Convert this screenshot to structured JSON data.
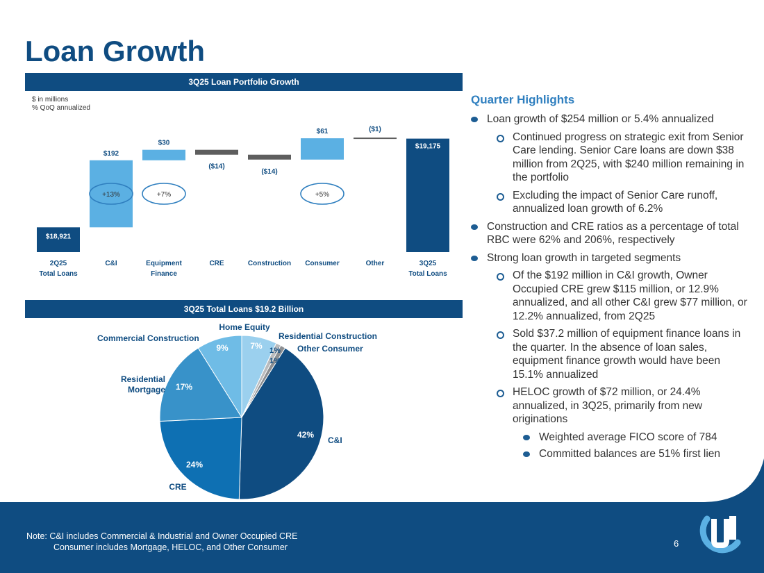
{
  "page": {
    "title": "Loan Growth",
    "page_number": "6"
  },
  "left": {
    "section1_header": "3Q25 Loan Portfolio Growth",
    "units_line1": "$ in millions",
    "units_line2": "% QoQ annualized",
    "section2_header": "3Q25 Total Loans $19.2 Billion"
  },
  "chart_data": [
    {
      "type": "bar",
      "subtype": "waterfall",
      "title": "3Q25 Loan Portfolio Growth",
      "units": "$ in millions",
      "categories": [
        [
          "2Q25",
          "Total Loans"
        ],
        [
          "C&I"
        ],
        [
          "Equipment",
          "Finance"
        ],
        [
          "CRE"
        ],
        [
          "Construction"
        ],
        [
          "Consumer"
        ],
        [
          "Other"
        ],
        [
          "3Q25",
          "Total Loans"
        ]
      ],
      "values": [
        18921,
        192,
        30,
        -14,
        -14,
        61,
        -1,
        19175
      ],
      "value_labels": [
        "$18,921",
        "$192",
        "$30",
        "($14)",
        "($14)",
        "$61",
        "($1)",
        "$19,175"
      ],
      "annualized_growth": [
        "",
        "+13%",
        "+7%",
        "",
        "",
        "+5%",
        "",
        ""
      ],
      "colors": {
        "total": "#0f4c81",
        "increase": "#5bb0e3",
        "decrease": "#5e5e5e",
        "label": "#0f4c81"
      }
    },
    {
      "type": "pie",
      "title": "3Q25 Total Loans $19.2 Billion",
      "slices": [
        {
          "label": "C&I",
          "value": 42,
          "pct_label": "42%",
          "color": "#0f4c81"
        },
        {
          "label": "CRE",
          "value": 24,
          "pct_label": "24%",
          "color": "#0e70b3"
        },
        {
          "label": "Residential Mortgage",
          "value": 17,
          "pct_label": "17%",
          "color": "#3892c9"
        },
        {
          "label": "Commercial Construction",
          "value": 9,
          "pct_label": "9%",
          "color": "#6fbce6"
        },
        {
          "label": "Home Equity",
          "value": 7,
          "pct_label": "7%",
          "color": "#9bd0ee"
        },
        {
          "label": "Residential Construction",
          "value": 1,
          "pct_label": "1%",
          "color": "#b9bbbd"
        },
        {
          "label": "Other Consumer",
          "value": 1,
          "pct_label": "1%",
          "color": "#8c8f92"
        }
      ]
    }
  ],
  "highlights": {
    "heading": "Quarter Highlights",
    "items": [
      {
        "level": 1,
        "text": "Loan growth of $254 million or 5.4% annualized"
      },
      {
        "level": 2,
        "text": "Continued progress on strategic exit from Senior Care lending. Senior Care loans are down $38 million from 2Q25, with $240 million remaining in the portfolio"
      },
      {
        "level": 2,
        "text": "Excluding the impact of Senior Care runoff, annualized loan growth of 6.2%"
      },
      {
        "level": 1,
        "text": "Construction and CRE ratios as a percentage of total RBC were 62% and 206%, respectively"
      },
      {
        "level": 1,
        "text": "Strong loan growth in targeted segments"
      },
      {
        "level": 2,
        "text": "Of the $192 million in C&I growth, Owner Occupied CRE grew $115 million, or 12.9% annualized, and all other C&I grew $77 million, or 12.2% annualized, from 2Q25"
      },
      {
        "level": 2,
        "text": "Sold $37.2 million of equipment finance loans in the quarter. In the absence of loan sales, equipment finance growth would have been 15.1% annualized"
      },
      {
        "level": 2,
        "text": "HELOC growth of $72 million, or 24.4% annualized, in 3Q25, primarily from new originations"
      },
      {
        "level": 3,
        "text": "Weighted average FICO score of 784"
      },
      {
        "level": 3,
        "text": "Committed balances are 51% first lien"
      }
    ]
  },
  "footer": {
    "note_line1": "Note: C&I includes Commercial & Industrial and Owner Occupied CRE",
    "note_line2": "Consumer includes Mortgage, HELOC, and Other Consumer"
  },
  "colors": {
    "navy": "#0f4c81",
    "accent_blue": "#2f7fbf",
    "light_blue": "#5bb0e3"
  }
}
